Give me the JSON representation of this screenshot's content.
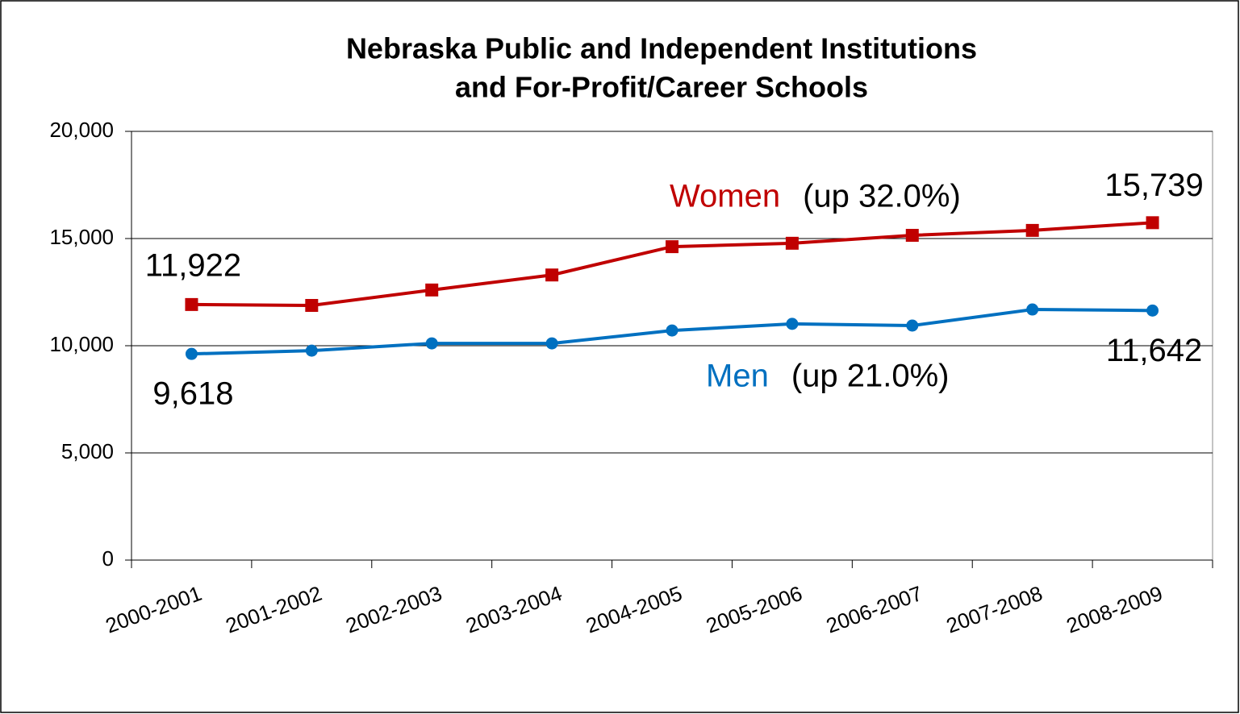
{
  "chart_data": {
    "type": "line",
    "title": [
      "Nebraska Public and Independent Institutions",
      "and For-Profit/Career Schools"
    ],
    "categories": [
      "2000-2001",
      "2001-2002",
      "2002-2003",
      "2003-2004",
      "2004-2005",
      "2005-2006",
      "2006-2007",
      "2007-2008",
      "2008-2009"
    ],
    "series": [
      {
        "name": "Women",
        "color": "#c00000",
        "marker": "square",
        "values": [
          11922,
          11880,
          12600,
          13300,
          14620,
          14780,
          15150,
          15380,
          15739
        ],
        "value_labels": [
          "11,922",
          null,
          null,
          null,
          null,
          null,
          null,
          null,
          "15,739"
        ],
        "annotation": "(up 32.0%)"
      },
      {
        "name": "Men",
        "color": "#0070c0",
        "marker": "circle",
        "values": [
          9618,
          9770,
          10110,
          10110,
          10710,
          11020,
          10940,
          11690,
          11642
        ],
        "value_labels": [
          "9,618",
          null,
          null,
          null,
          null,
          null,
          null,
          null,
          "11,642"
        ],
        "annotation": "(up 21.0%)"
      }
    ],
    "ylim": [
      0,
      20000
    ],
    "yticks": [
      0,
      {
        "value": 5000,
        "label": "5,000"
      },
      {
        "value": 10000,
        "label": "10,000"
      },
      {
        "value": 15000,
        "label": "15,000"
      },
      {
        "value": 20000,
        "label": "20,000"
      }
    ],
    "grid": true
  }
}
